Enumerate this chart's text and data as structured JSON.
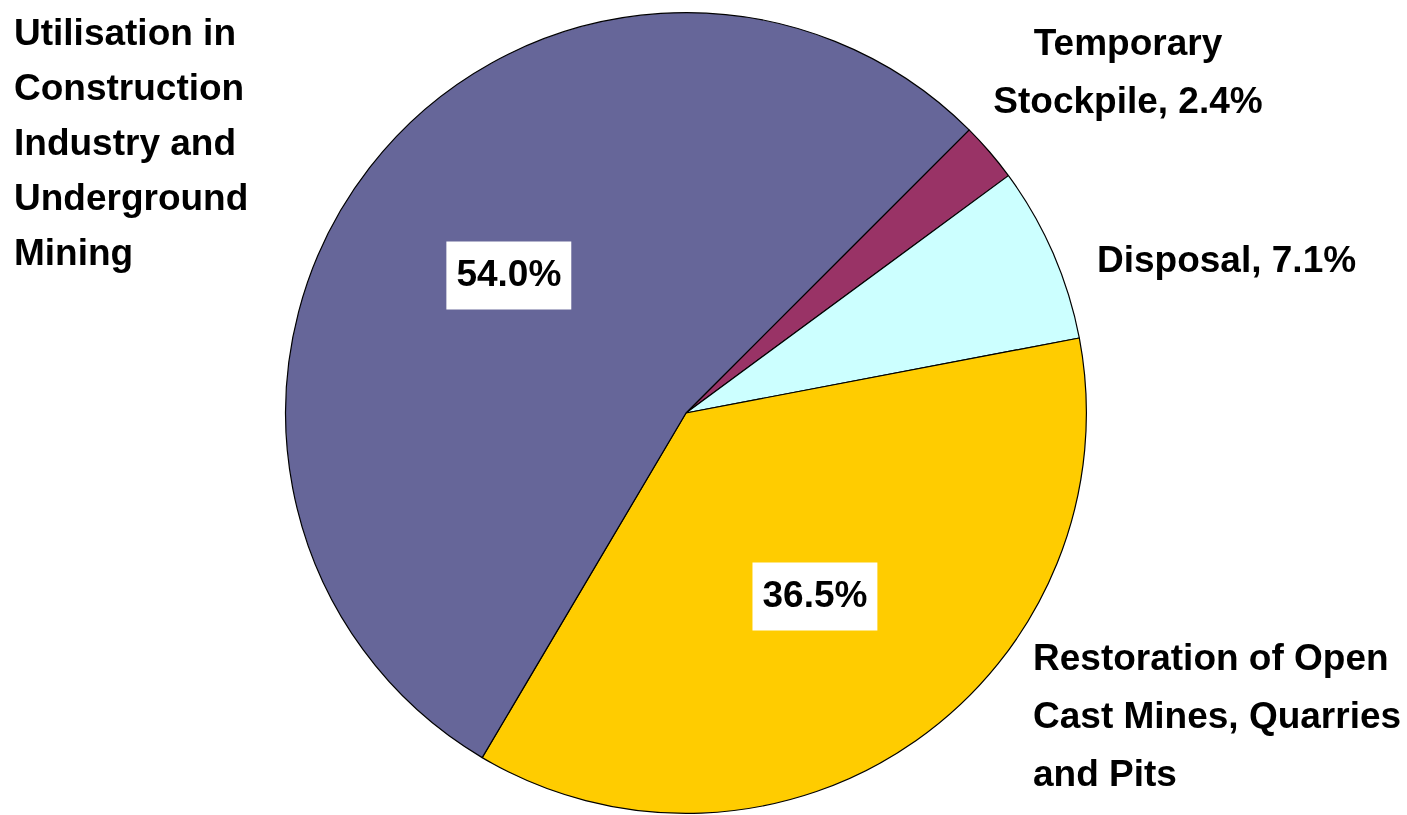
{
  "chart_data": {
    "type": "pie",
    "categories": [
      "Temporary Stockpile",
      "Disposal",
      "Restoration of Open Cast Mines, Quarries and Pits",
      "Utilisation in Construction Industry and Underground Mining"
    ],
    "values": [
      2.4,
      7.1,
      36.5,
      54.0
    ],
    "value_labels": [
      "2.4%",
      "7.1%",
      "36.5%",
      "54.0%"
    ],
    "colors": [
      "#993366",
      "#ccffff",
      "#ffcc00",
      "#666699"
    ],
    "legend": false
  }
}
